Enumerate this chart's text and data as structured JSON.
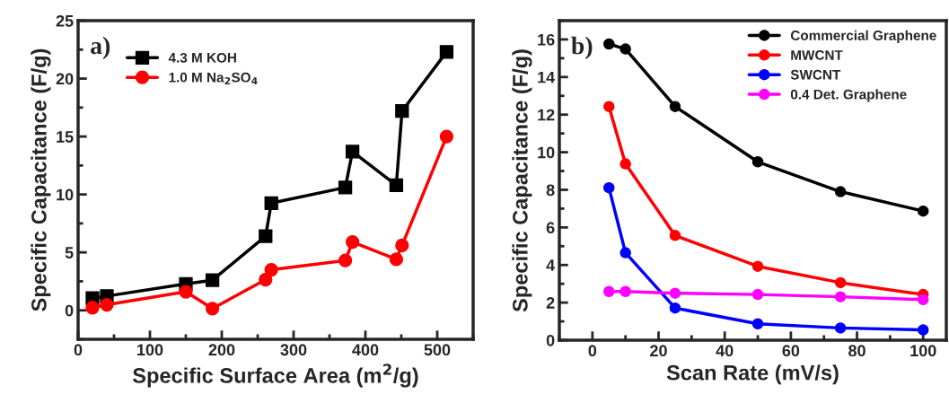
{
  "chart_data": [
    {
      "type": "line",
      "xlabel": "Specific Surface Area (m$^{2}$/g)",
      "ylabel": "Specific Capacitance (F/g)",
      "annotations": [
        "a)"
      ],
      "xlim": [
        0,
        550
      ],
      "xticks": [
        0,
        100,
        200,
        300,
        400,
        500
      ],
      "ylim": [
        -2.5,
        25
      ],
      "yticks": [
        0,
        5,
        10,
        15,
        20,
        25
      ],
      "grid": false,
      "legend": "top left",
      "series": [
        {
          "name": "4.3 M KOH",
          "color": "#000000",
          "marker": "square",
          "x": [
            20,
            40,
            150,
            187,
            261,
            269,
            372,
            382,
            443,
            451,
            513
          ],
          "values": [
            1.05,
            1.23,
            2.28,
            2.6,
            6.4,
            9.25,
            10.6,
            13.7,
            10.8,
            17.2,
            22.3
          ]
        },
        {
          "name": "1.0 M Na$_{2}$SO$_{4}$",
          "color": "#ff0000",
          "marker": "circle",
          "x": [
            20,
            40,
            150,
            187,
            261,
            269,
            372,
            382,
            443,
            451,
            513
          ],
          "values": [
            0.23,
            0.48,
            1.6,
            0.15,
            2.65,
            3.5,
            4.3,
            5.9,
            4.4,
            5.6,
            15.0
          ]
        }
      ]
    },
    {
      "type": "line",
      "xlabel": "Scan Rate (mV/s)",
      "ylabel": "Specific Capacitance (F/g)",
      "annotations": [
        "b)"
      ],
      "xlim": [
        -10,
        107
      ],
      "xticks": [
        0,
        20,
        40,
        60,
        80,
        100
      ],
      "ylim": [
        0,
        17
      ],
      "yticks": [
        0,
        2,
        4,
        6,
        8,
        10,
        12,
        14,
        16
      ],
      "grid": false,
      "legend": "top right",
      "marker": "circle",
      "x": [
        5,
        10,
        25,
        50,
        75,
        100
      ],
      "series": [
        {
          "name": "Commercial Graphene",
          "color": "#000000",
          "values": [
            15.76,
            15.49,
            12.43,
            9.49,
            7.9,
            6.87
          ]
        },
        {
          "name": "MWCNT",
          "color": "#ff0000",
          "values": [
            12.43,
            9.38,
            5.57,
            3.93,
            3.06,
            2.43
          ]
        },
        {
          "name": "SWCNT",
          "color": "#0000ff",
          "values": [
            8.11,
            4.65,
            1.71,
            0.87,
            0.65,
            0.55
          ]
        },
        {
          "name": "0.4 Det. Graphene",
          "color": "#ff00ff",
          "values": [
            2.59,
            2.59,
            2.5,
            2.43,
            2.31,
            2.16
          ]
        }
      ]
    }
  ]
}
